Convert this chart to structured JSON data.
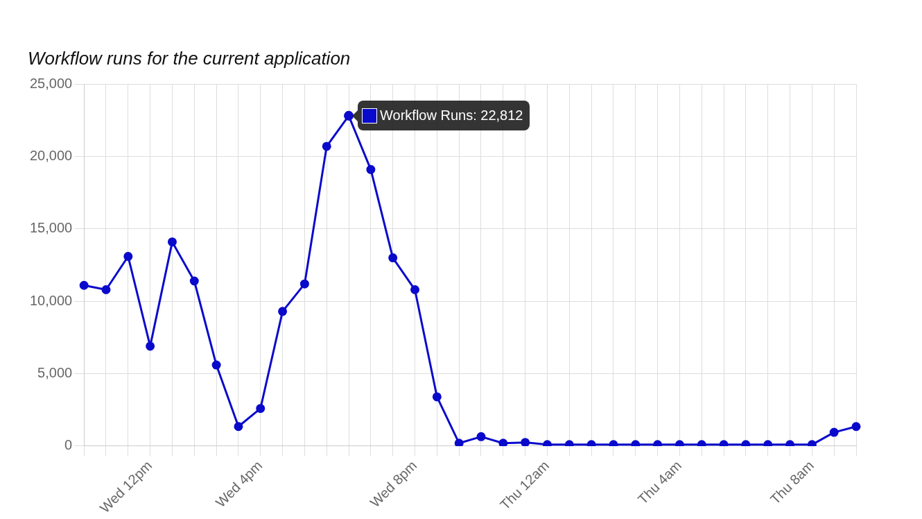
{
  "chart_data": {
    "type": "line",
    "title": "Workflow runs for the current application",
    "categories": [
      null,
      null,
      null,
      "Wed 12pm",
      null,
      null,
      null,
      null,
      "Wed 4pm",
      null,
      null,
      null,
      null,
      null,
      null,
      "Wed 8pm",
      null,
      null,
      null,
      null,
      null,
      "Thu 12am",
      null,
      null,
      null,
      null,
      null,
      "Thu 4am",
      null,
      null,
      null,
      null,
      null,
      "Thu 8am",
      null,
      null
    ],
    "series": [
      {
        "color": "#0a0acc",
        "values": [
          11100,
          10800,
          13100,
          6900,
          14100,
          11400,
          5600,
          1350,
          2600,
          9300,
          11200,
          20700,
          22812,
          19100,
          13000,
          10800,
          3400,
          200,
          650,
          200,
          250,
          100,
          100,
          100,
          100,
          100,
          100,
          100,
          100,
          100,
          100,
          100,
          100,
          100,
          950,
          1350
        ],
        "value_labels": [
          null,
          null,
          null,
          null,
          null,
          null,
          null,
          null,
          null,
          null,
          null,
          null,
          "Workflow Runs: 22,812",
          null,
          null,
          null,
          null,
          null,
          null,
          null,
          null,
          null,
          null,
          null,
          null,
          null,
          null,
          null,
          null,
          null,
          null,
          null,
          null,
          null,
          null,
          null
        ]
      }
    ],
    "ylim": [
      0,
      25000
    ],
    "yticks": [
      {
        "value": 0,
        "label": "0"
      },
      {
        "value": 5000,
        "label": "5,000"
      },
      {
        "value": 10000,
        "label": "10,000"
      },
      {
        "value": 15000,
        "label": "15,000"
      },
      {
        "value": 20000,
        "label": "20,000"
      },
      {
        "value": 25000,
        "label": "25,000"
      }
    ],
    "grid": true,
    "legend": false,
    "marker": "circle",
    "line_style": "solid"
  }
}
